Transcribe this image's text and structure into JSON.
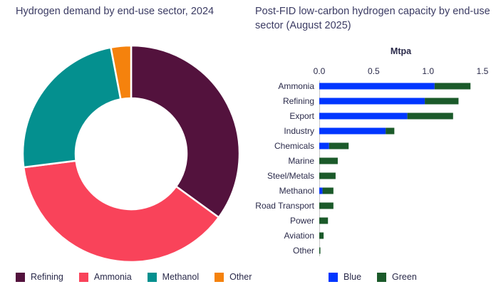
{
  "chart_data": [
    {
      "type": "pie",
      "title": "Hydrogen demand by end-use sector, 2024",
      "donut": true,
      "categories": [
        "Refining",
        "Ammonia",
        "Methanol",
        "Other"
      ],
      "values": [
        35,
        38,
        24,
        3
      ],
      "colors": [
        "#53123d",
        "#f9435a",
        "#04908f",
        "#f5820d"
      ],
      "legend_position": "bottom"
    },
    {
      "type": "bar",
      "orientation": "horizontal",
      "stacked": true,
      "title": "Post-FID low-carbon hydrogen capacity by end-use sector (August 2025)",
      "xlabel": "Mtpa",
      "xlim": [
        0,
        1.5
      ],
      "xticks": [
        "0.0",
        "0.5",
        "1.0",
        "1.5"
      ],
      "categories": [
        "Ammonia",
        "Refining",
        "Export",
        "Industry",
        "Chemicals",
        "Marine",
        "Steel/Metals",
        "Methanol",
        "Road Transport",
        "Power",
        "Aviation",
        "Other"
      ],
      "series": [
        {
          "name": "Blue",
          "color": "#0036ff",
          "values": [
            1.06,
            0.97,
            0.81,
            0.61,
            0.09,
            0.0,
            0.0,
            0.03,
            0.0,
            0.0,
            0.0,
            0.0
          ]
        },
        {
          "name": "Green",
          "color": "#1b5a2a",
          "values": [
            0.33,
            0.31,
            0.42,
            0.08,
            0.18,
            0.17,
            0.15,
            0.1,
            0.13,
            0.08,
            0.04,
            0.01
          ]
        }
      ],
      "grid": false,
      "legend_position": "bottom"
    }
  ]
}
